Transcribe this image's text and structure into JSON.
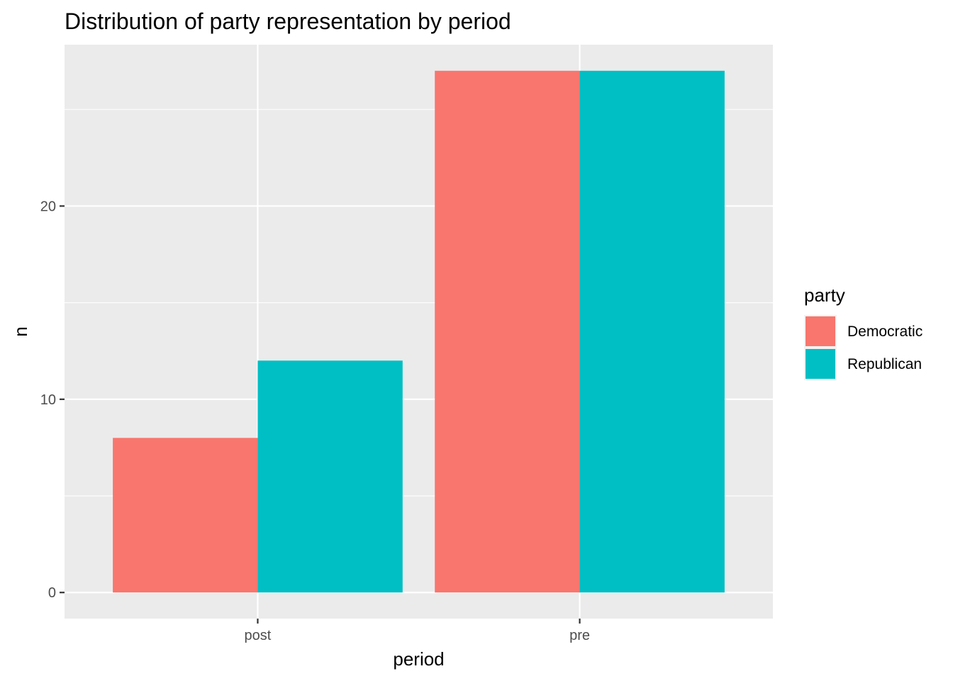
{
  "chart_data": {
    "type": "bar",
    "title": "Distribution of party representation by period",
    "xlabel": "period",
    "ylabel": "n",
    "categories": [
      "post",
      "pre"
    ],
    "series": [
      {
        "name": "Democratic",
        "color": "#F8766D",
        "values": [
          8,
          27
        ]
      },
      {
        "name": "Republican",
        "color": "#00BFC4",
        "values": [
          12,
          27
        ]
      }
    ],
    "ylim": [
      -1.35,
      28.35
    ],
    "yticks": [
      0,
      10,
      20
    ],
    "grid": true,
    "legend": {
      "title": "party",
      "position": "right"
    }
  }
}
